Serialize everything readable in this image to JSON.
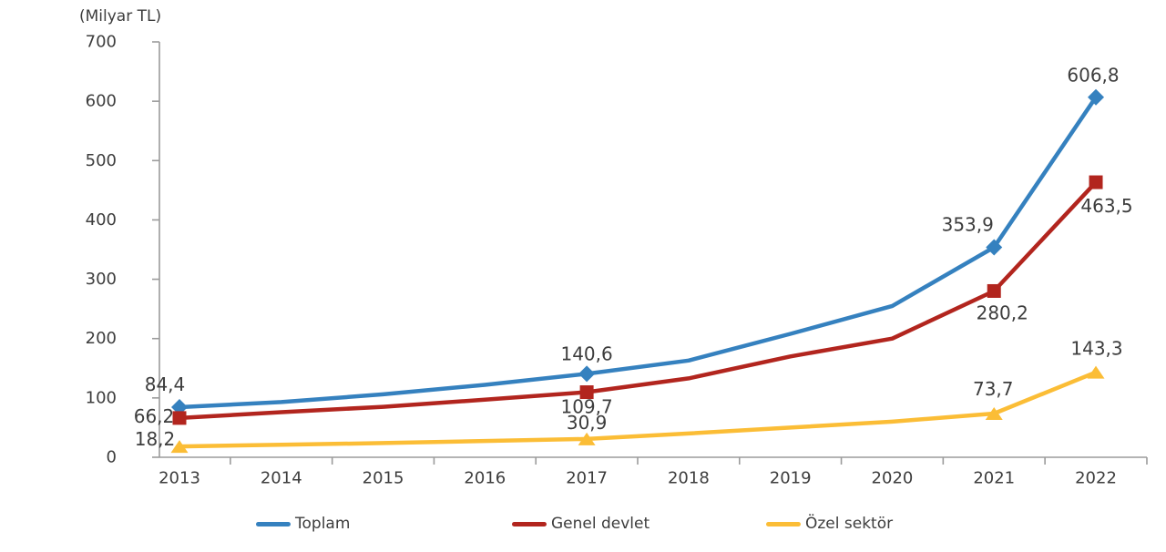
{
  "chart_data": {
    "type": "line",
    "unit_label": "(Milyar TL)",
    "x_labels": [
      "2013",
      "2014",
      "2015",
      "2016",
      "2017",
      "2018",
      "2019",
      "2020",
      "2021",
      "2022"
    ],
    "ylim": [
      0,
      700
    ],
    "ytick_labels": [
      "0",
      "100",
      "200",
      "300",
      "400",
      "500",
      "600",
      "700"
    ],
    "grid": false,
    "legend_position": "bottom",
    "series": [
      {
        "name": "Toplam",
        "color": "#3581BF",
        "marker": "diamond",
        "values": [
          84.4,
          93,
          106,
          122,
          140.6,
          163,
          208,
          255,
          353.9,
          606.8
        ],
        "point_labels": {
          "2013": "84,4",
          "2017": "140,6",
          "2021": "353,9",
          "2022": "606,8"
        }
      },
      {
        "name": "Genel devlet",
        "color": "#B2251E",
        "marker": "square",
        "values": [
          66.2,
          76,
          85,
          97,
          109.7,
          133,
          170,
          200,
          280.2,
          463.5
        ],
        "point_labels": {
          "2013": "66,2",
          "2017": "109,7",
          "2021": "280,2",
          "2022": "463,5"
        }
      },
      {
        "name": "Özel sektör",
        "color": "#FBBD36",
        "marker": "triangle",
        "values": [
          18.2,
          21,
          24,
          27.5,
          30.9,
          40,
          50,
          60,
          73.7,
          143.3
        ],
        "point_labels": {
          "2013": "18,2",
          "2017": "30,9",
          "2021": "73,7",
          "2022": "143,3"
        }
      }
    ]
  },
  "colors": {
    "axis": "#9b9b9b",
    "label_text": "#3d3d3d"
  }
}
